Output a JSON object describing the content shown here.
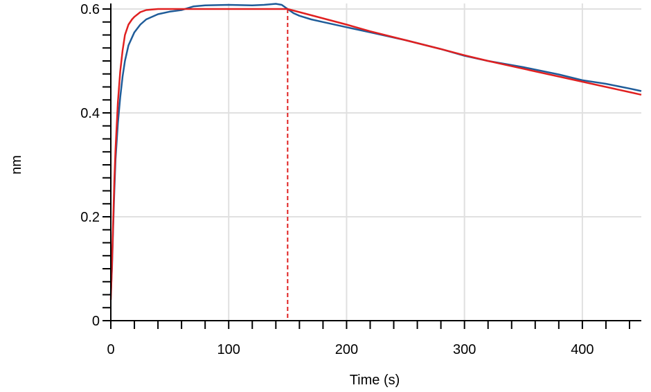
{
  "chart_data": {
    "type": "line",
    "xlabel": "Time (s)",
    "ylabel": "nm",
    "xlim": [
      0,
      450
    ],
    "ylim": [
      0,
      0.6
    ],
    "x_ticks": [
      0,
      100,
      200,
      300,
      400
    ],
    "x_tick_labels": [
      "0",
      "100",
      "200",
      "300",
      "400"
    ],
    "y_ticks": [
      0,
      0.2,
      0.4,
      0.6
    ],
    "y_tick_labels": [
      "0",
      "0.2",
      "0.4",
      "0.6"
    ],
    "grid": true,
    "phase_markers": [
      0,
      150
    ],
    "colors": {
      "measured": "#1f5c99",
      "fit": "#e02020",
      "marker": "#e02020",
      "grid": "#e0e0e0"
    },
    "series": [
      {
        "color": "#1f5c99",
        "x": [
          0,
          1,
          2,
          3,
          4,
          6,
          8,
          10,
          12,
          15,
          18,
          20,
          25,
          30,
          40,
          50,
          60,
          70,
          80,
          100,
          120,
          130,
          140,
          145,
          150,
          155,
          160,
          170,
          180,
          200,
          220,
          250,
          280,
          300,
          320,
          350,
          380,
          400,
          420,
          440,
          450
        ],
        "y": [
          0.05,
          0.1,
          0.18,
          0.25,
          0.31,
          0.38,
          0.43,
          0.47,
          0.5,
          0.53,
          0.545,
          0.555,
          0.57,
          0.58,
          0.59,
          0.595,
          0.598,
          0.605,
          0.607,
          0.608,
          0.607,
          0.608,
          0.61,
          0.608,
          0.6,
          0.592,
          0.587,
          0.58,
          0.575,
          0.565,
          0.555,
          0.54,
          0.523,
          0.51,
          0.5,
          0.488,
          0.474,
          0.463,
          0.456,
          0.447,
          0.442
        ]
      },
      {
        "color": "#e02020",
        "x": [
          0,
          1,
          2,
          3,
          4,
          6,
          8,
          10,
          12,
          15,
          18,
          20,
          25,
          30,
          40,
          50,
          60,
          80,
          100,
          120,
          140,
          150,
          160,
          170,
          180,
          200,
          220,
          250,
          280,
          300,
          320,
          350,
          380,
          400,
          420,
          440,
          450
        ],
        "y": [
          0.04,
          0.11,
          0.19,
          0.27,
          0.33,
          0.42,
          0.48,
          0.52,
          0.55,
          0.57,
          0.58,
          0.585,
          0.594,
          0.598,
          0.6,
          0.6,
          0.6,
          0.6,
          0.6,
          0.6,
          0.6,
          0.6,
          0.594,
          0.588,
          0.582,
          0.57,
          0.557,
          0.54,
          0.523,
          0.511,
          0.5,
          0.485,
          0.47,
          0.46,
          0.45,
          0.44,
          0.435
        ]
      }
    ]
  }
}
